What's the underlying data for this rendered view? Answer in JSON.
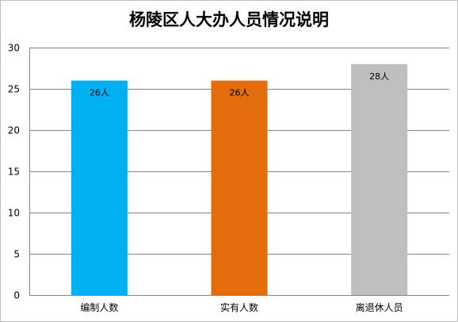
{
  "chart_data": {
    "type": "bar",
    "title": "杨陵区人大办人员情况说明",
    "xlabel": "",
    "ylabel": "",
    "categories": [
      "编制人数",
      "实有人数",
      "离退休人员"
    ],
    "values": [
      26,
      26,
      28
    ],
    "data_labels": [
      "26人",
      "26人",
      "28人"
    ],
    "bar_colors": [
      "#00b0f0",
      "#e46c0a",
      "#bfbfbf"
    ],
    "ylim": [
      0,
      30
    ],
    "yticks": [
      "0",
      "5",
      "10",
      "15",
      "20",
      "25",
      "30"
    ],
    "grid": true,
    "legend": "none"
  }
}
